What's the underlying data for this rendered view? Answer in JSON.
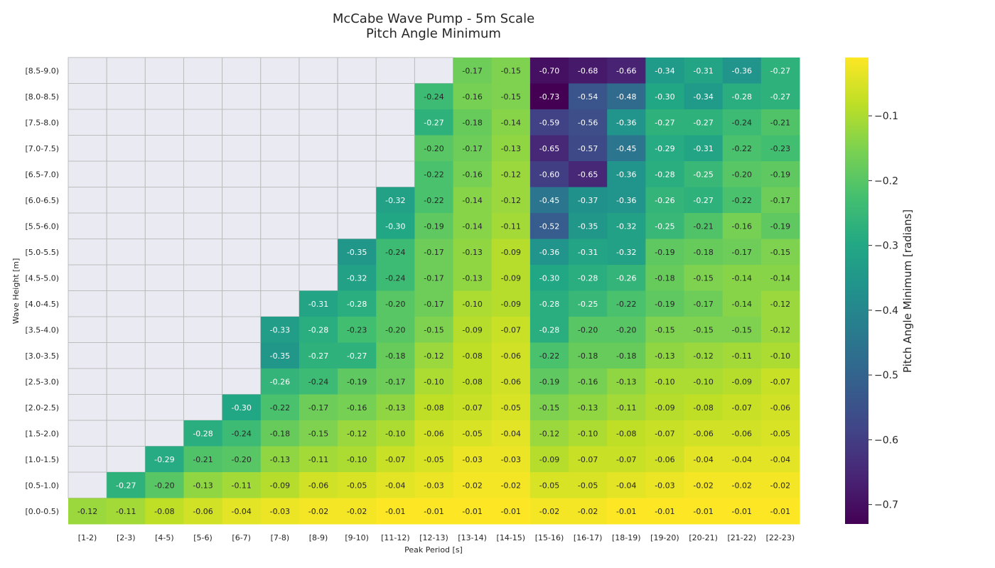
{
  "chart_data": {
    "type": "heatmap",
    "title_lines": [
      "McCabe Wave Pump - 5m Scale",
      "Pitch Angle Minimum"
    ],
    "xlabel": "Peak Period [s]",
    "ylabel": "Wave Height [m]",
    "colorbar_label": "Pitch Angle Minimum [radians]",
    "colormap": "viridis",
    "missing_color": "#eaeaf2",
    "x_categories": [
      "[1-2)",
      "[2-3)",
      "[4-5)",
      "[5-6)",
      "[6-7)",
      "[7-8)",
      "[8-9)",
      "[9-10)",
      "[11-12)",
      "[12-13)",
      "[13-14)",
      "[14-15)",
      "[15-16)",
      "[16-17)",
      "[18-19)",
      "[19-20)",
      "[20-21)",
      "[21-22)",
      "[22-23)"
    ],
    "y_categories": [
      "[8.5-9.0)",
      "[8.0-8.5)",
      "[7.5-8.0)",
      "[7.0-7.5)",
      "[6.5-7.0)",
      "[6.0-6.5)",
      "[5.5-6.0)",
      "[5.0-5.5)",
      "[4.5-5.0)",
      "[4.0-4.5)",
      "[3.5-4.0)",
      "[3.0-3.5)",
      "[2.5-3.0)",
      "[2.0-2.5)",
      "[1.5-2.0)",
      "[1.0-1.5)",
      "[0.5-1.0)",
      "[0.0-0.5)"
    ],
    "values": [
      [
        null,
        null,
        null,
        null,
        null,
        null,
        null,
        null,
        null,
        null,
        -0.17,
        -0.15,
        -0.7,
        -0.68,
        -0.66,
        -0.34,
        -0.31,
        -0.36,
        -0.27
      ],
      [
        null,
        null,
        null,
        null,
        null,
        null,
        null,
        null,
        null,
        -0.24,
        -0.16,
        -0.15,
        -0.73,
        -0.54,
        -0.48,
        -0.3,
        -0.34,
        -0.28,
        -0.27
      ],
      [
        null,
        null,
        null,
        null,
        null,
        null,
        null,
        null,
        null,
        -0.27,
        -0.18,
        -0.14,
        -0.59,
        -0.56,
        -0.36,
        -0.27,
        -0.27,
        -0.24,
        -0.21
      ],
      [
        null,
        null,
        null,
        null,
        null,
        null,
        null,
        null,
        null,
        -0.2,
        -0.17,
        -0.13,
        -0.65,
        -0.57,
        -0.45,
        -0.29,
        -0.31,
        -0.22,
        -0.23
      ],
      [
        null,
        null,
        null,
        null,
        null,
        null,
        null,
        null,
        null,
        -0.22,
        -0.16,
        -0.12,
        -0.6,
        -0.65,
        -0.36,
        -0.28,
        -0.25,
        -0.2,
        -0.19
      ],
      [
        null,
        null,
        null,
        null,
        null,
        null,
        null,
        null,
        -0.32,
        -0.22,
        -0.14,
        -0.12,
        -0.45,
        -0.37,
        -0.36,
        -0.26,
        -0.27,
        -0.22,
        -0.17
      ],
      [
        null,
        null,
        null,
        null,
        null,
        null,
        null,
        null,
        -0.3,
        -0.19,
        -0.14,
        -0.11,
        -0.52,
        -0.35,
        -0.32,
        -0.25,
        -0.21,
        -0.16,
        -0.19
      ],
      [
        null,
        null,
        null,
        null,
        null,
        null,
        null,
        -0.35,
        -0.24,
        -0.17,
        -0.13,
        -0.09,
        -0.36,
        -0.31,
        -0.32,
        -0.19,
        -0.18,
        -0.17,
        -0.15
      ],
      [
        null,
        null,
        null,
        null,
        null,
        null,
        null,
        -0.32,
        -0.24,
        -0.17,
        -0.13,
        -0.09,
        -0.3,
        -0.28,
        -0.26,
        -0.18,
        -0.15,
        -0.14,
        -0.14
      ],
      [
        null,
        null,
        null,
        null,
        null,
        null,
        -0.31,
        -0.28,
        -0.2,
        -0.17,
        -0.1,
        -0.09,
        -0.28,
        -0.25,
        -0.22,
        -0.19,
        -0.17,
        -0.14,
        -0.12
      ],
      [
        null,
        null,
        null,
        null,
        null,
        -0.33,
        -0.28,
        -0.23,
        -0.2,
        -0.15,
        -0.09,
        -0.07,
        -0.28,
        -0.2,
        -0.2,
        -0.15,
        -0.15,
        -0.15,
        -0.12
      ],
      [
        null,
        null,
        null,
        null,
        null,
        -0.35,
        -0.27,
        -0.27,
        -0.18,
        -0.12,
        -0.08,
        -0.06,
        -0.22,
        -0.18,
        -0.18,
        -0.13,
        -0.12,
        -0.11,
        -0.1
      ],
      [
        null,
        null,
        null,
        null,
        null,
        -0.26,
        -0.24,
        -0.19,
        -0.17,
        -0.1,
        -0.08,
        -0.06,
        -0.19,
        -0.16,
        -0.13,
        -0.1,
        -0.1,
        -0.09,
        -0.07
      ],
      [
        null,
        null,
        null,
        null,
        -0.3,
        -0.22,
        -0.17,
        -0.16,
        -0.13,
        -0.08,
        -0.07,
        -0.05,
        -0.15,
        -0.13,
        -0.11,
        -0.09,
        -0.08,
        -0.07,
        -0.06
      ],
      [
        null,
        null,
        null,
        -0.28,
        -0.24,
        -0.18,
        -0.15,
        -0.12,
        -0.1,
        -0.06,
        -0.05,
        -0.04,
        -0.12,
        -0.1,
        -0.08,
        -0.07,
        -0.06,
        -0.06,
        -0.05
      ],
      [
        null,
        null,
        -0.29,
        -0.21,
        -0.2,
        -0.13,
        -0.11,
        -0.1,
        -0.07,
        -0.05,
        -0.03,
        -0.03,
        -0.09,
        -0.07,
        -0.07,
        -0.06,
        -0.04,
        -0.04,
        -0.04
      ],
      [
        null,
        -0.27,
        -0.2,
        -0.13,
        -0.11,
        -0.09,
        -0.06,
        -0.05,
        -0.04,
        -0.03,
        -0.02,
        -0.02,
        -0.05,
        -0.05,
        -0.04,
        -0.03,
        -0.02,
        -0.02,
        -0.02
      ],
      [
        -0.12,
        -0.11,
        -0.08,
        -0.06,
        -0.04,
        -0.03,
        -0.02,
        -0.02,
        -0.01,
        -0.01,
        -0.01,
        -0.01,
        -0.02,
        -0.02,
        -0.01,
        -0.01,
        -0.01,
        -0.01,
        -0.01
      ]
    ],
    "vmin": -0.73,
    "vmax": -0.01,
    "colorbar_ticks": [
      -0.7,
      -0.6,
      -0.5,
      -0.4,
      -0.3,
      -0.2,
      -0.1
    ],
    "colorbar_tick_labels": [
      "−0.7",
      "−0.6",
      "−0.5",
      "−0.4",
      "−0.3",
      "−0.2",
      "−0.1"
    ],
    "annotation_format": "2 decimals"
  }
}
